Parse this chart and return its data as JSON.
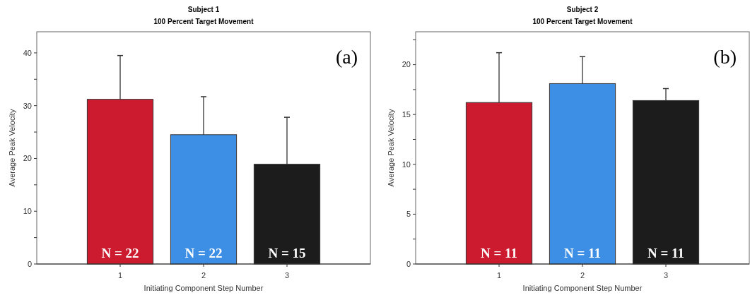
{
  "chart_data": [
    {
      "type": "bar",
      "title": "Subject 1",
      "subtitle": "100 Percent Target Movement",
      "xlabel": "Initiating Component Step Number",
      "ylabel": "Average Peak Velocity",
      "categories": [
        "1",
        "2",
        "3"
      ],
      "values": [
        31.2,
        24.5,
        18.9
      ],
      "colors": [
        "#cc1a2e",
        "#3d8fe6",
        "#1c1c1c"
      ],
      "errors": [
        [
          31.2,
          39.5
        ],
        [
          24.5,
          31.7
        ],
        [
          18.9,
          27.8
        ]
      ],
      "ylim": [
        0,
        44
      ],
      "yticks": [
        0,
        {
          "value": 5,
          "label": null
        },
        10,
        {
          "value": 15,
          "label": null
        },
        20,
        {
          "value": 25,
          "label": null
        },
        30,
        {
          "value": 35,
          "label": null
        },
        40
      ],
      "annotations": [
        "(a)",
        "N = 22",
        "N = 22",
        "N = 15"
      ]
    },
    {
      "type": "bar",
      "title": "Subject 2",
      "subtitle": "100 Percent Target Movement",
      "xlabel": "Initiating Component Step Number",
      "ylabel": "Average Peak Velocity",
      "categories": [
        "1",
        "2",
        "3"
      ],
      "values": [
        16.2,
        18.1,
        16.4
      ],
      "colors": [
        "#cc1a2e",
        "#3d8fe6",
        "#1c1c1c"
      ],
      "errors": [
        [
          16.2,
          21.2
        ],
        [
          18.1,
          20.8
        ],
        [
          16.4,
          17.6
        ]
      ],
      "ylim": [
        0,
        23.3
      ],
      "yticks": [
        0,
        {
          "value": 2.5,
          "label": null
        },
        5,
        {
          "value": 7.5,
          "label": null
        },
        10,
        {
          "value": 12.5,
          "label": null
        },
        15,
        {
          "value": 17.5,
          "label": null
        },
        20,
        {
          "value": 22.5,
          "label": null
        }
      ],
      "annotations": [
        "(b)",
        "N = 11",
        "N = 11",
        "N = 11"
      ]
    }
  ]
}
